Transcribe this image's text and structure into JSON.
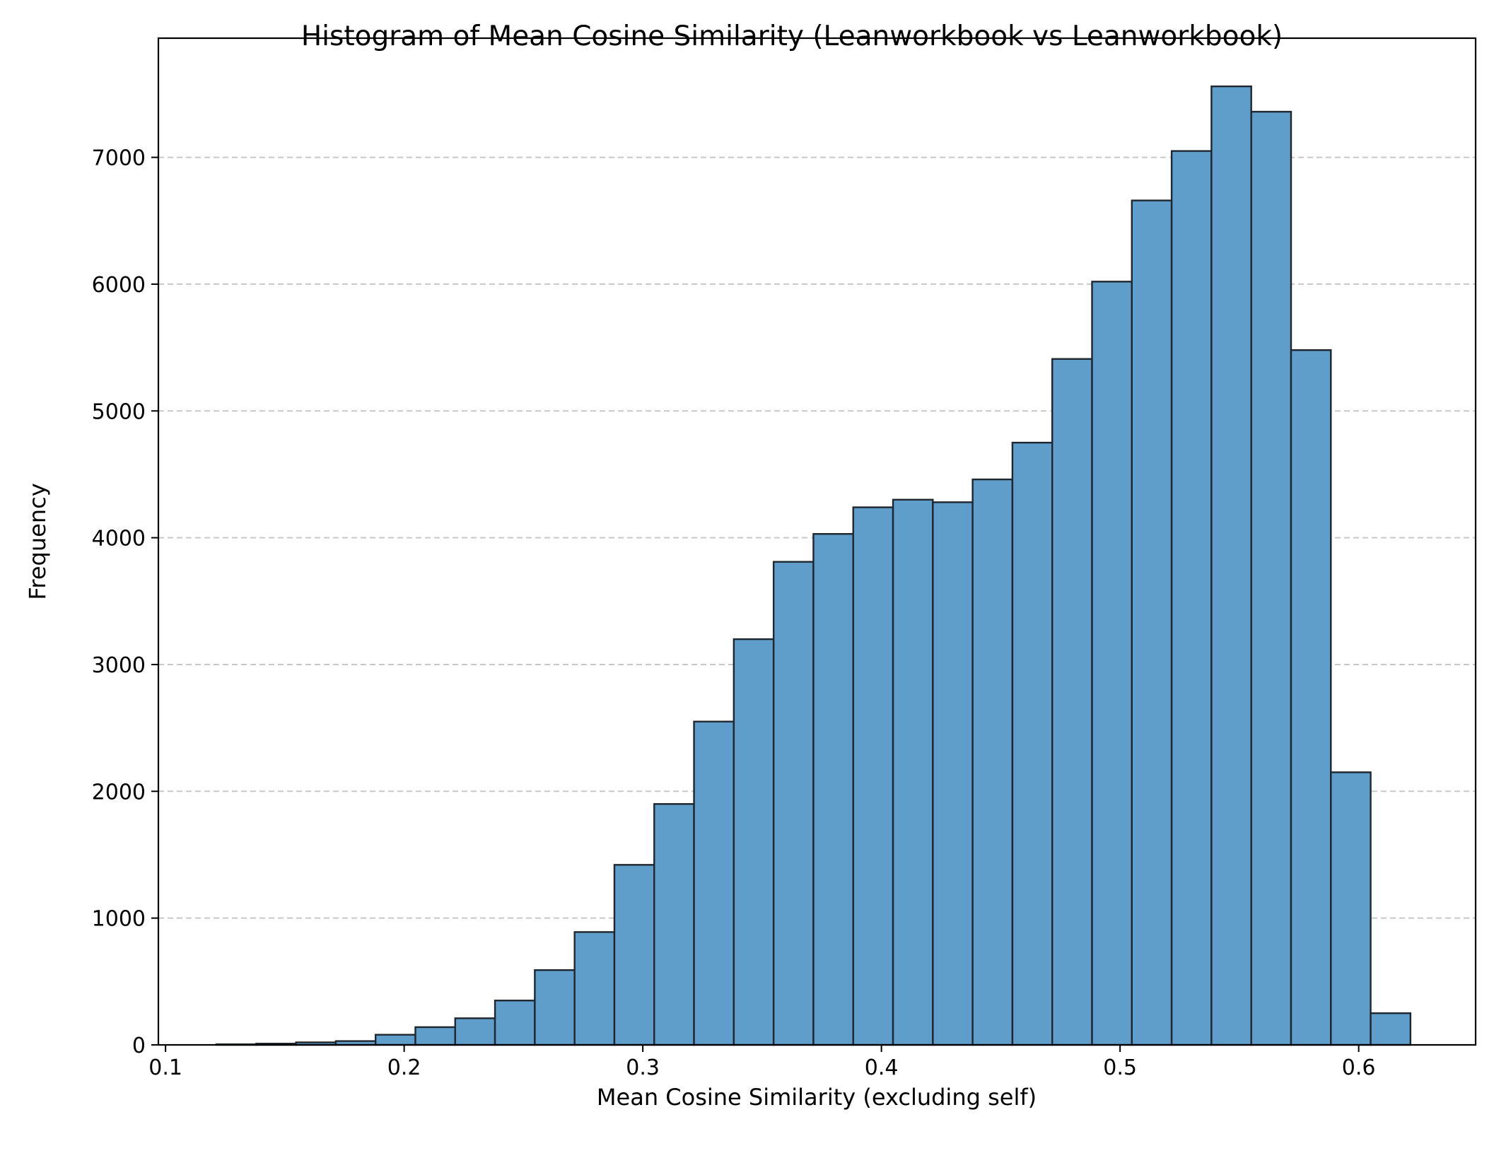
{
  "chart_data": {
    "type": "bar",
    "title": "Histogram of Mean Cosine Similarity (Leanworkbook vs Leanworkbook)",
    "xlabel": "Mean Cosine Similarity (excluding self)",
    "ylabel": "Frequency",
    "xlim": [
      0.097,
      0.649
    ],
    "ylim": [
      0,
      7940
    ],
    "xticks": [
      {
        "value": 0.1,
        "label": "0.1"
      },
      {
        "value": 0.2,
        "label": "0.2"
      },
      {
        "value": 0.3,
        "label": "0.3"
      },
      {
        "value": 0.4,
        "label": "0.4"
      },
      {
        "value": 0.5,
        "label": "0.5"
      },
      {
        "value": 0.6,
        "label": "0.6"
      }
    ],
    "yticks": [
      {
        "value": 0,
        "label": "0"
      },
      {
        "value": 1000,
        "label": "1000"
      },
      {
        "value": 2000,
        "label": "2000"
      },
      {
        "value": 3000,
        "label": "3000"
      },
      {
        "value": 4000,
        "label": "4000"
      },
      {
        "value": 5000,
        "label": "5000"
      },
      {
        "value": 6000,
        "label": "6000"
      },
      {
        "value": 7000,
        "label": "7000"
      }
    ],
    "grid": "y-dashed",
    "bin_start": 0.1213,
    "bin_width": 0.01668,
    "values": [
      5,
      10,
      20,
      30,
      80,
      140,
      210,
      350,
      590,
      890,
      1420,
      1900,
      2550,
      3200,
      3810,
      4030,
      4240,
      4300,
      4280,
      4460,
      4750,
      5410,
      6020,
      6660,
      7050,
      7560,
      7360,
      5480,
      2150,
      250
    ],
    "colors": {
      "bar_fill": "#5f9dcb",
      "bar_edge": "#1f262e",
      "grid": "#c8c8c8"
    }
  }
}
